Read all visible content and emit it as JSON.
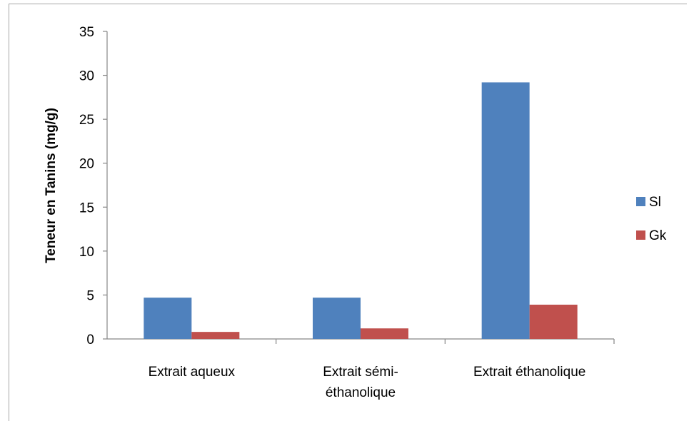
{
  "chart_data": {
    "type": "bar",
    "title": "",
    "xlabel": "",
    "ylabel": "Teneur en Tanins (mg/g)",
    "ylim": [
      0,
      35
    ],
    "yticks": [
      0,
      5,
      10,
      15,
      20,
      25,
      30,
      35
    ],
    "grid": false,
    "legend_position": "right",
    "categories": [
      [
        "Extrait aqueux"
      ],
      [
        "Extrait sémi-",
        "éthanolique"
      ],
      [
        "Extrait éthanolique"
      ]
    ],
    "series": [
      {
        "name": "Sl",
        "color": "#4f81bd",
        "values": [
          4.7,
          4.7,
          29.2
        ]
      },
      {
        "name": "Gk",
        "color": "#c0504d",
        "values": [
          0.8,
          1.2,
          3.9
        ]
      }
    ]
  }
}
